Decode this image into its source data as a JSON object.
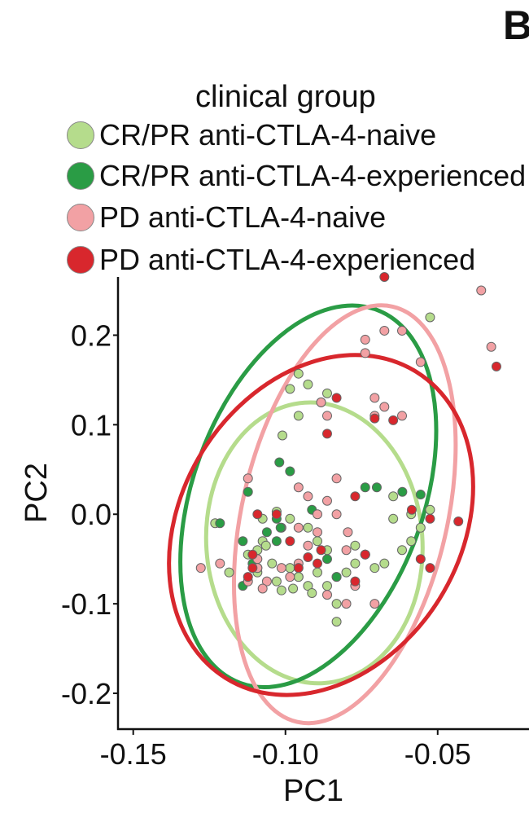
{
  "panel_letter": "B",
  "chart_data": {
    "type": "scatter",
    "xlabel": "PC1",
    "ylabel": "PC2",
    "xlim": [
      -0.155,
      -0.02
    ],
    "ylim": [
      -0.24,
      0.265
    ],
    "x_ticks": [
      -0.15,
      -0.1,
      -0.05
    ],
    "x_tick_labels": [
      "-0.15",
      "-0.10",
      "-0.05"
    ],
    "y_ticks": [
      0.2,
      0.1,
      0.0,
      -0.1,
      -0.2
    ],
    "y_tick_labels": [
      "0.2",
      "0.1",
      "0.0",
      "-0.1",
      "-0.2"
    ],
    "grid": false,
    "legend": {
      "title": "clinical group",
      "placement": "top"
    },
    "series": [
      {
        "name": "CR/PR anti-CTLA-4-naive",
        "color": "#b5dc8c",
        "ellipse": {
          "cx": -0.0905,
          "cy": -0.032,
          "rx": 0.0355,
          "ry": 0.157,
          "angle_deg": -4
        },
        "points": [
          [
            -0.0985,
            0.14
          ],
          [
            -0.0957,
            0.157
          ],
          [
            -0.0926,
            0.145
          ],
          [
            -0.0863,
            0.135
          ],
          [
            -0.0957,
            0.11
          ],
          [
            -0.101,
            0.088
          ],
          [
            -0.1075,
            -0.005
          ],
          [
            -0.1029,
            0.003
          ],
          [
            -0.1013,
            -0.015
          ],
          [
            -0.0985,
            -0.005
          ],
          [
            -0.1075,
            -0.03
          ],
          [
            -0.1092,
            -0.04
          ],
          [
            -0.1123,
            -0.045
          ],
          [
            -0.1044,
            -0.055
          ],
          [
            -0.1092,
            -0.065
          ],
          [
            -0.1185,
            -0.065
          ],
          [
            -0.1029,
            -0.075
          ],
          [
            -0.0985,
            -0.06
          ],
          [
            -0.0957,
            -0.07
          ],
          [
            -0.0926,
            -0.08
          ],
          [
            -0.0895,
            -0.065
          ],
          [
            -0.0863,
            -0.04
          ],
          [
            -0.0895,
            -0.03
          ],
          [
            -0.0926,
            -0.015
          ],
          [
            -0.0863,
            -0.08
          ],
          [
            -0.0832,
            -0.07
          ],
          [
            -0.08,
            -0.065
          ],
          [
            -0.0832,
            -0.1
          ],
          [
            -0.0832,
            -0.12
          ],
          [
            -0.0771,
            -0.055
          ],
          [
            -0.0771,
            -0.035
          ],
          [
            -0.0738,
            -0.045
          ],
          [
            -0.0675,
            -0.055
          ],
          [
            -0.0617,
            -0.04
          ],
          [
            -0.0587,
            -0.03
          ],
          [
            -0.0646,
            -0.005
          ],
          [
            -0.0646,
            0.02
          ],
          [
            -0.0587,
            0.0
          ],
          [
            -0.0556,
            -0.015
          ],
          [
            -0.0525,
            0.005
          ],
          [
            -0.0707,
            -0.06
          ],
          [
            -0.0525,
            0.22
          ],
          [
            -0.1231,
            -0.01
          ],
          [
            -0.0957,
            -0.07
          ],
          [
            -0.1013,
            -0.085
          ],
          [
            -0.0975,
            -0.083
          ],
          [
            -0.0913,
            -0.088
          ],
          [
            -0.1064,
            -0.035
          ],
          [
            -0.0883,
            0.125
          ]
        ]
      },
      {
        "name": "CR/PR anti-CTLA-4-experienced",
        "color": "#2a9c45",
        "ellipse": {
          "cx": -0.0925,
          "cy": 0.02,
          "rx": 0.0652,
          "ry": 0.129,
          "angle_deg": -70
        },
        "points": [
          [
            -0.102,
            0.058
          ],
          [
            -0.0985,
            0.048
          ],
          [
            -0.1061,
            -0.02
          ],
          [
            -0.1029,
            -0.005
          ],
          [
            -0.1016,
            -0.015
          ],
          [
            -0.114,
            -0.03
          ],
          [
            -0.1108,
            -0.055
          ],
          [
            -0.114,
            -0.08
          ],
          [
            -0.1215,
            -0.01
          ],
          [
            -0.0913,
            0.005
          ],
          [
            -0.1123,
            0.025
          ],
          [
            -0.0832,
            -0.07
          ],
          [
            -0.0738,
            0.03
          ],
          [
            -0.07,
            0.03
          ],
          [
            -0.0616,
            0.025
          ],
          [
            -0.0556,
            0.022
          ],
          [
            -0.0863,
            -0.05
          ],
          [
            -0.1029,
            -0.03
          ],
          [
            -0.1092,
            -0.06
          ]
        ]
      },
      {
        "name": "PD anti-CTLA-4-naive",
        "color": "#f2a1a4",
        "ellipse": {
          "cx": -0.0805,
          "cy": 0.0,
          "rx": 0.0337,
          "ry": 0.238,
          "angle_deg": 13
        },
        "points": [
          [
            -0.1123,
            0.04
          ],
          [
            -0.1215,
            -0.055
          ],
          [
            -0.1278,
            -0.06
          ],
          [
            -0.1061,
            -0.075
          ],
          [
            -0.1092,
            -0.05
          ],
          [
            -0.0957,
            0.03
          ],
          [
            -0.0957,
            -0.015
          ],
          [
            -0.0926,
            0.02
          ],
          [
            -0.0895,
            0.0
          ],
          [
            -0.08,
            -0.04
          ],
          [
            -0.0771,
            -0.08
          ],
          [
            -0.0738,
            -0.045
          ],
          [
            -0.0738,
            0.195
          ],
          [
            -0.0675,
            0.205
          ],
          [
            -0.0617,
            0.205
          ],
          [
            -0.0556,
            0.17
          ],
          [
            -0.0738,
            0.18
          ],
          [
            -0.0707,
            0.13
          ],
          [
            -0.0707,
            0.11
          ],
          [
            -0.0675,
            0.12
          ],
          [
            -0.0617,
            0.11
          ],
          [
            -0.0863,
            0.11
          ],
          [
            -0.0883,
            0.125
          ],
          [
            -0.0832,
            0.04
          ],
          [
            -0.0863,
            0.015
          ],
          [
            -0.0895,
            -0.02
          ],
          [
            -0.0357,
            0.25
          ],
          [
            -0.0324,
            0.187
          ],
          [
            -0.0832,
            0.0
          ],
          [
            -0.0795,
            -0.02
          ],
          [
            -0.1092,
            -0.06
          ],
          [
            -0.1075,
            -0.083
          ],
          [
            -0.1013,
            -0.06
          ],
          [
            -0.0985,
            -0.07
          ],
          [
            -0.0957,
            -0.055
          ],
          [
            -0.0926,
            -0.035
          ],
          [
            -0.0863,
            -0.09
          ],
          [
            -0.08,
            -0.1
          ],
          [
            -0.0707,
            -0.1
          ],
          [
            -0.1123,
            -0.075
          ]
        ]
      },
      {
        "name": "PD anti-CTLA-4-experienced",
        "color": "#d8272d",
        "ellipse": {
          "cx": -0.0883,
          "cy": -0.012,
          "rx": 0.0592,
          "ry": 0.156,
          "angle_deg": -58
        },
        "points": [
          [
            -0.0675,
            0.265
          ],
          [
            -0.0307,
            0.165
          ],
          [
            -0.0832,
            0.13
          ],
          [
            -0.0863,
            0.09
          ],
          [
            -0.0707,
            0.107
          ],
          [
            -0.0646,
            0.105
          ],
          [
            -0.1029,
            0.0
          ],
          [
            -0.1092,
            0.0
          ],
          [
            -0.1108,
            -0.06
          ],
          [
            -0.0985,
            -0.03
          ],
          [
            -0.0926,
            -0.048
          ],
          [
            -0.0895,
            -0.055
          ],
          [
            -0.0771,
            0.02
          ],
          [
            -0.0738,
            -0.045
          ],
          [
            -0.0556,
            -0.05
          ],
          [
            -0.0525,
            -0.005
          ],
          [
            -0.0525,
            -0.06
          ],
          [
            -0.0432,
            -0.008
          ],
          [
            -0.0585,
            0.005
          ],
          [
            -0.0771,
            -0.075
          ],
          [
            -0.1108,
            -0.045
          ],
          [
            -0.0957,
            -0.06
          ],
          [
            -0.0883,
            -0.04
          ],
          [
            -0.1123,
            -0.07
          ]
        ]
      }
    ]
  }
}
